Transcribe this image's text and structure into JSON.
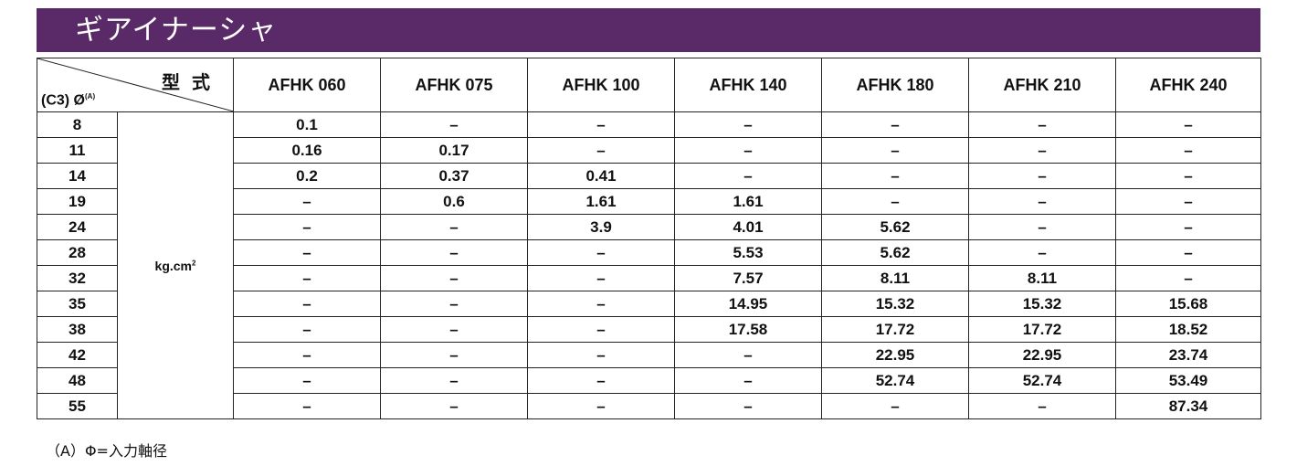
{
  "title": "ギアイナーシャ",
  "header": {
    "type_label": "型 式",
    "diameter_label": "(C3) Ø",
    "diameter_sup": "(A)",
    "models": [
      "AFHK 060",
      "AFHK 075",
      "AFHK 100",
      "AFHK 140",
      "AFHK 180",
      "AFHK 210",
      "AFHK 240"
    ]
  },
  "unit": "kg.cm",
  "unit_sup": "2",
  "rows": [
    {
      "dia": "8",
      "values": [
        "0.1",
        "–",
        "–",
        "–",
        "–",
        "–",
        "–"
      ]
    },
    {
      "dia": "11",
      "values": [
        "0.16",
        "0.17",
        "–",
        "–",
        "–",
        "–",
        "–"
      ]
    },
    {
      "dia": "14",
      "values": [
        "0.2",
        "0.37",
        "0.41",
        "–",
        "–",
        "–",
        "–"
      ]
    },
    {
      "dia": "19",
      "values": [
        "–",
        "0.6",
        "1.61",
        "1.61",
        "–",
        "–",
        "–"
      ]
    },
    {
      "dia": "24",
      "values": [
        "–",
        "–",
        "3.9",
        "4.01",
        "5.62",
        "–",
        "–"
      ]
    },
    {
      "dia": "28",
      "values": [
        "–",
        "–",
        "–",
        "5.53",
        "5.62",
        "–",
        "–"
      ]
    },
    {
      "dia": "32",
      "values": [
        "–",
        "–",
        "–",
        "7.57",
        "8.11",
        "8.11",
        "–"
      ]
    },
    {
      "dia": "35",
      "values": [
        "–",
        "–",
        "–",
        "14.95",
        "15.32",
        "15.32",
        "15.68"
      ]
    },
    {
      "dia": "38",
      "values": [
        "–",
        "–",
        "–",
        "17.58",
        "17.72",
        "17.72",
        "18.52"
      ]
    },
    {
      "dia": "42",
      "values": [
        "–",
        "–",
        "–",
        "–",
        "22.95",
        "22.95",
        "23.74"
      ]
    },
    {
      "dia": "48",
      "values": [
        "–",
        "–",
        "–",
        "–",
        "52.74",
        "52.74",
        "53.49"
      ]
    },
    {
      "dia": "55",
      "values": [
        "–",
        "–",
        "–",
        "–",
        "–",
        "–",
        "87.34"
      ]
    }
  ],
  "footnote": "（A）Φ=入力軸径"
}
